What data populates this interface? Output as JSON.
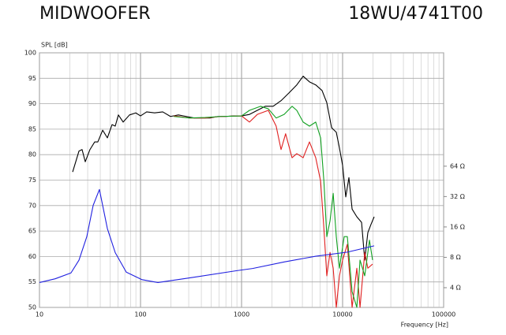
{
  "chart_data": {
    "type": "line",
    "title": "MIDWOOFER",
    "subtitle": "18WU/4741T00",
    "ylabel": "SPL [dB]",
    "xlabel": "Frequency [Hz]",
    "xlog": true,
    "y2log": true,
    "grid": true,
    "xlim": [
      10,
      100000
    ],
    "xticks": [
      10,
      100,
      1000,
      10000,
      100000
    ],
    "xminorticks": [
      20,
      30,
      40,
      50,
      60,
      70,
      80,
      90,
      200,
      300,
      400,
      500,
      600,
      700,
      800,
      900,
      2000,
      3000,
      4000,
      5000,
      6000,
      7000,
      8000,
      9000,
      20000,
      30000,
      40000,
      50000,
      60000,
      70000,
      80000,
      90000
    ],
    "ylim": [
      50,
      100
    ],
    "yticks": [
      50,
      55,
      60,
      65,
      70,
      75,
      80,
      85,
      90,
      95,
      100
    ],
    "y2lim": [
      2.55,
      851
    ],
    "y2ticks": [
      {
        "value": 4,
        "label": "4 Ω"
      },
      {
        "value": 8,
        "label": "8 Ω"
      },
      {
        "value": 16,
        "label": "16 Ω"
      },
      {
        "value": 32,
        "label": "32 Ω"
      },
      {
        "value": 64,
        "label": "64 Ω"
      }
    ],
    "series": [
      {
        "color": "#000000",
        "x": [
          21.3,
          24.6,
          26.4,
          28.4,
          31.6,
          35.2,
          37.8,
          42.2,
          47,
          52.3,
          56.2,
          60.4,
          67.3,
          77.8,
          89.8,
          100,
          115,
          138,
          166,
          198,
          237,
          284,
          340,
          407,
          487,
          583,
          698,
          835,
          1000,
          1197,
          1432,
          1714,
          2054,
          2460,
          2940,
          3520,
          4070,
          4700,
          5420,
          6260,
          6980,
          7780,
          8660,
          9310,
          10000,
          10750,
          11550,
          12420,
          13830,
          15410,
          16560,
          17780,
          19100,
          20540
        ],
        "values": [
          76.6,
          80.7,
          81,
          78.6,
          81,
          82.5,
          82.5,
          84.8,
          83.3,
          85.9,
          85.6,
          87.8,
          86.4,
          87.8,
          88.2,
          87.6,
          88.4,
          88.2,
          88.4,
          87.5,
          87.8,
          87.5,
          87.2,
          87.2,
          87.2,
          87.5,
          87.5,
          87.6,
          87.6,
          87.9,
          88.7,
          89.5,
          89.5,
          90.6,
          92.1,
          93.7,
          95.4,
          94.3,
          93.7,
          92.6,
          90.2,
          85.3,
          84.4,
          81.3,
          77.9,
          71.7,
          75.5,
          69.3,
          67.8,
          66.7,
          59.3,
          64.7,
          66.3,
          67.8
        ]
      },
      {
        "color": "#e02020",
        "x": [
          213,
          305,
          436,
          625,
          1000,
          1197,
          1432,
          1840,
          2200,
          2460,
          2730,
          3160,
          3520,
          4070,
          4700,
          5420,
          6060,
          6530,
          6980,
          7510,
          8070,
          8660,
          9310,
          10000,
          11140,
          12420,
          13830,
          14880,
          16560,
          17780,
          19800
        ],
        "values": [
          87.6,
          87.2,
          87.2,
          87.5,
          87.6,
          86.4,
          87.9,
          88.7,
          85.6,
          81,
          84.1,
          79.4,
          80.2,
          79.4,
          82.5,
          79.4,
          74.8,
          65.5,
          56.2,
          60.8,
          57.7,
          50,
          56.2,
          59.3,
          62.4,
          50,
          57.7,
          50,
          60.8,
          57.7,
          58.5
        ]
      },
      {
        "color": "#10a020",
        "x": [
          213,
          305,
          436,
          625,
          1000,
          1197,
          1540,
          1840,
          2200,
          2640,
          3160,
          3520,
          4070,
          4700,
          5420,
          6060,
          6530,
          6980,
          7510,
          8070,
          8660,
          9310,
          10370,
          11140,
          12420,
          13830,
          14880,
          16560,
          18450,
          19800
        ],
        "values": [
          87.5,
          87.2,
          87.3,
          87.5,
          87.6,
          88.7,
          89.5,
          89,
          87.2,
          87.9,
          89.5,
          88.7,
          86.4,
          85.6,
          86.4,
          83.3,
          74.8,
          63.9,
          67,
          72.4,
          63.9,
          57.7,
          63.9,
          63.9,
          53.1,
          50,
          59.3,
          56.2,
          63.2,
          59.3
        ]
      },
      {
        "color": "#2020e0",
        "axis": "y2",
        "x": [
          10,
          14.3,
          20.5,
          24.6,
          29.4,
          34,
          39.2,
          42.2,
          47,
          56.2,
          72.3,
          103.7,
          148.6,
          305,
          898,
          1286,
          2642,
          5420,
          11140,
          20540
        ],
        "values": [
          4.5,
          4.9,
          5.6,
          7.5,
          12.8,
          26.2,
          37.6,
          26.2,
          15.4,
          8.9,
          5.7,
          4.8,
          4.5,
          5,
          5.9,
          6.2,
          7.2,
          8.2,
          9,
          10.4
        ]
      }
    ]
  }
}
